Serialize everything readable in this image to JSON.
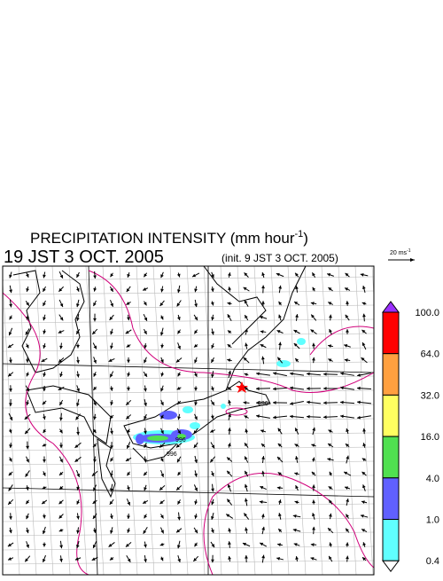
{
  "header": {
    "title": {
      "main": "PRECIPITATION INTENSITY (mm hour",
      "sup": "-1",
      "close": ")"
    },
    "time": "19 JST 3 OCT. 2005",
    "init": "(init. 9 JST 3 OCT. 2005)"
  },
  "reference_vector": {
    "label": "20 ms",
    "sup": "-1"
  },
  "legend": {
    "labels": [
      "100.0",
      "64.0",
      "32.0",
      "16.0",
      "4.0",
      "1.0",
      "0.4"
    ],
    "colors": [
      "#9b30ff",
      "#ff0000",
      "#ffa040",
      "#ffff60",
      "#50e050",
      "#6060ff",
      "#60ffff",
      "#ffffff"
    ]
  },
  "map": {
    "contour_labels": [
      "996",
      "996",
      "996"
    ]
  }
}
